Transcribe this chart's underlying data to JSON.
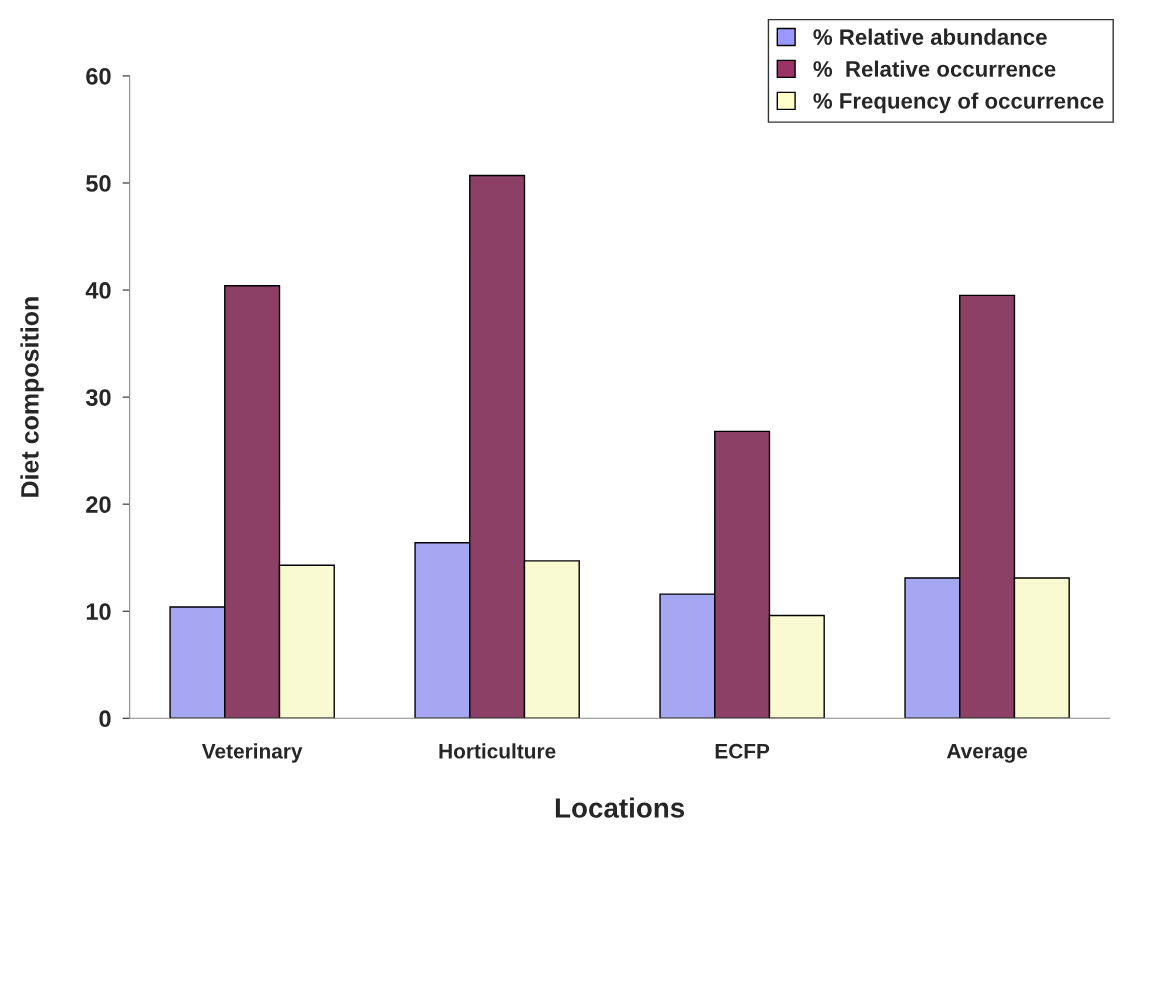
{
  "chart_data": {
    "type": "bar",
    "xlabel": "Locations",
    "ylabel": "Diet composition",
    "categories": [
      "Veterinary",
      "Horticulture",
      "ECFP",
      "Average"
    ],
    "series": [
      {
        "name": "% Relative abundance",
        "color": "#9999ff",
        "values": [
          10.4,
          16.4,
          11.6,
          13.1
        ]
      },
      {
        "name": "%  Relative occurrence",
        "color": "#993366",
        "values": [
          40.4,
          50.7,
          26.8,
          39.5
        ]
      },
      {
        "name": "% Frequency of occurrence",
        "color": "#ffffcc",
        "values": [
          14.3,
          14.7,
          9.6,
          13.1
        ]
      }
    ],
    "ylim": [
      0,
      60
    ],
    "yticks": [
      0,
      10,
      20,
      30,
      40,
      50,
      60
    ],
    "grid": false,
    "legend": "top right"
  }
}
